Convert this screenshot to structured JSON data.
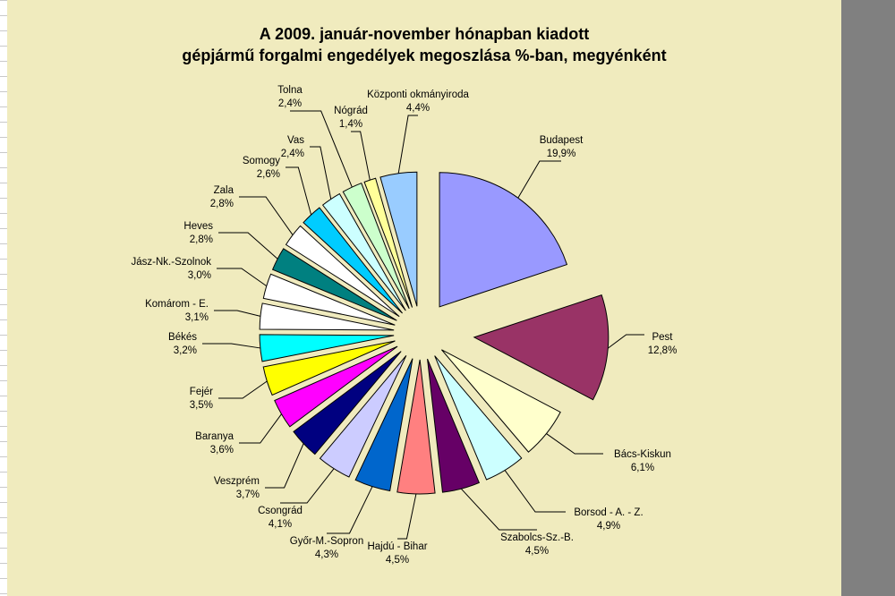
{
  "chart_data": {
    "type": "pie",
    "exploded": true,
    "title_line1": "A  2009. január-november hónapban kiadott",
    "title_line2": "gépjármű forgalmi engedélyek megoszlása %-ban, megyénként",
    "legend": "none",
    "slices": [
      {
        "label": "Budapest",
        "value": 19.9,
        "value_label": "19,9%",
        "color": "#9999ff"
      },
      {
        "label": "Pest",
        "value": 12.8,
        "value_label": "12,8%",
        "color": "#993366"
      },
      {
        "label": "Bács-Kiskun",
        "value": 6.1,
        "value_label": "6,1%",
        "color": "#ffffcc"
      },
      {
        "label": "Borsod - A. - Z.",
        "value": 4.9,
        "value_label": "4,9%",
        "color": "#ccffff"
      },
      {
        "label": "Szabolcs-Sz.-B.",
        "value": 4.5,
        "value_label": "4,5%",
        "color": "#660066"
      },
      {
        "label": "Hajdú - Bihar",
        "value": 4.5,
        "value_label": "4,5%",
        "color": "#ff8080"
      },
      {
        "label": "Győr-M.-Sopron",
        "value": 4.3,
        "value_label": "4,3%",
        "color": "#0066cc"
      },
      {
        "label": "Csongrád",
        "value": 4.1,
        "value_label": "4,1%",
        "color": "#ccccff"
      },
      {
        "label": "Veszprém",
        "value": 3.7,
        "value_label": "3,7%",
        "color": "#000080"
      },
      {
        "label": "Baranya",
        "value": 3.6,
        "value_label": "3,6%",
        "color": "#ff00ff"
      },
      {
        "label": "Fejér",
        "value": 3.5,
        "value_label": "3,5%",
        "color": "#ffff00"
      },
      {
        "label": "Békés",
        "value": 3.2,
        "value_label": "3,2%",
        "color": "#00ffff"
      },
      {
        "label": "Komárom - E.",
        "value": 3.1,
        "value_label": "3,1%",
        "color": "#ffffff"
      },
      {
        "label": "Jász-Nk.-Szolnok",
        "value": 3.0,
        "value_label": "3,0%",
        "color": "#ffffff"
      },
      {
        "label": "Heves",
        "value": 2.8,
        "value_label": "2,8%",
        "color": "#008080"
      },
      {
        "label": "Zala",
        "value": 2.8,
        "value_label": "2,8%",
        "color": "#ffffff"
      },
      {
        "label": "Somogy",
        "value": 2.6,
        "value_label": "2,6%",
        "color": "#00ccff"
      },
      {
        "label": "Vas",
        "value": 2.4,
        "value_label": "2,4%",
        "color": "#ccffff"
      },
      {
        "label": "Tolna",
        "value": 2.4,
        "value_label": "2,4%",
        "color": "#ccffcc"
      },
      {
        "label": "Nógrád",
        "value": 1.4,
        "value_label": "1,4%",
        "color": "#ffff99"
      },
      {
        "label": "Központi okmányiroda",
        "value": 4.4,
        "value_label": "4,4%",
        "color": "#99ccff"
      }
    ]
  }
}
